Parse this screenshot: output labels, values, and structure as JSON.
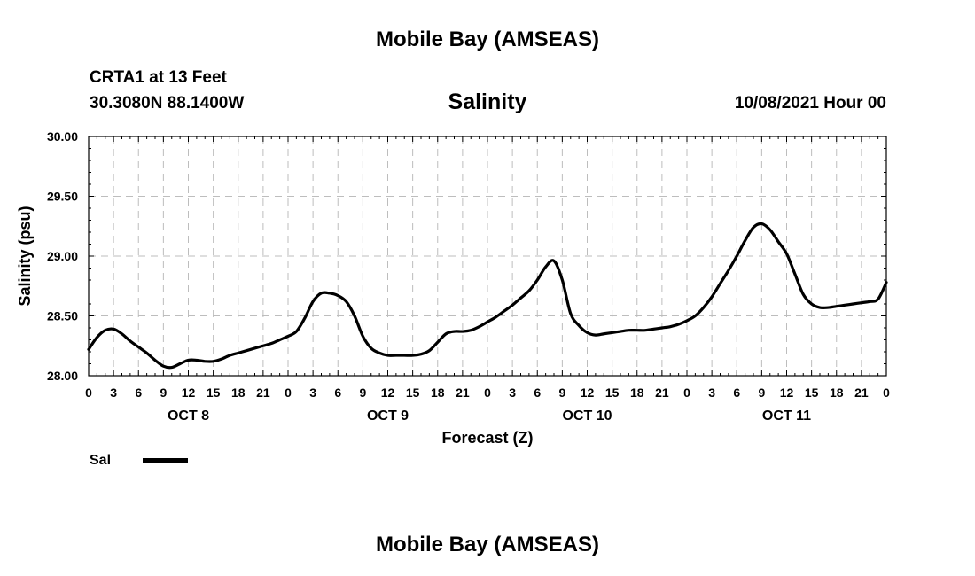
{
  "header": {
    "title": "Mobile Bay (AMSEAS)",
    "station": "CRTA1 at 13 Feet",
    "coords": "30.3080N  88.1400W",
    "run_time": "10/08/2021 Hour 00"
  },
  "footer": {
    "title": "Mobile Bay (AMSEAS)"
  },
  "chart_data": {
    "type": "line",
    "title": "Salinity",
    "xlabel": "Forecast (Z)",
    "ylabel": "Salinity (psu)",
    "ylim": [
      28.0,
      30.0
    ],
    "yticks": [
      "28.00",
      "28.50",
      "29.00",
      "29.50",
      "30.00"
    ],
    "xlim": [
      0,
      96
    ],
    "xtick_hours": [
      0,
      3,
      6,
      9,
      12,
      15,
      18,
      21,
      24,
      27,
      30,
      33,
      36,
      39,
      42,
      45,
      48,
      51,
      54,
      57,
      60,
      63,
      66,
      69,
      72,
      75,
      78,
      81,
      84,
      87,
      90,
      93,
      96
    ],
    "xtick_labels": [
      "0",
      "3",
      "6",
      "9",
      "12",
      "15",
      "18",
      "21",
      "0",
      "3",
      "6",
      "9",
      "12",
      "15",
      "18",
      "21",
      "0",
      "3",
      "6",
      "9",
      "12",
      "15",
      "18",
      "21",
      "0",
      "3",
      "6",
      "9",
      "12",
      "15",
      "18",
      "21",
      "0"
    ],
    "day_labels": [
      {
        "hour": 12,
        "label": "OCT 8"
      },
      {
        "hour": 36,
        "label": "OCT 9"
      },
      {
        "hour": 60,
        "label": "OCT 10"
      },
      {
        "hour": 84,
        "label": "OCT 11"
      }
    ],
    "grid": true,
    "series": [
      {
        "name": "Sal",
        "color": "#000000",
        "x": [
          0,
          1,
          2,
          3,
          4,
          5,
          6,
          7,
          8,
          9,
          10,
          11,
          12,
          13,
          14,
          15,
          16,
          17,
          18,
          19,
          20,
          21,
          22,
          23,
          24,
          25,
          26,
          27,
          28,
          29,
          30,
          31,
          32,
          33,
          34,
          35,
          36,
          37,
          38,
          39,
          40,
          41,
          42,
          43,
          44,
          45,
          46,
          47,
          48,
          49,
          50,
          51,
          52,
          53,
          54,
          55,
          56,
          57,
          58,
          59,
          60,
          61,
          62,
          63,
          64,
          65,
          66,
          67,
          68,
          69,
          70,
          71,
          72,
          73,
          74,
          75,
          76,
          77,
          78,
          79,
          80,
          81,
          82,
          83,
          84,
          85,
          86,
          87,
          88,
          89,
          90,
          91,
          92,
          93,
          94,
          95,
          96
        ],
        "values": [
          28.22,
          28.32,
          28.38,
          28.39,
          28.35,
          28.29,
          28.24,
          28.19,
          28.13,
          28.08,
          28.07,
          28.1,
          28.13,
          28.13,
          28.12,
          28.12,
          28.14,
          28.17,
          28.19,
          28.21,
          28.23,
          28.25,
          28.27,
          28.3,
          28.33,
          28.37,
          28.48,
          28.62,
          28.69,
          28.69,
          28.67,
          28.62,
          28.5,
          28.33,
          28.23,
          28.19,
          28.17,
          28.17,
          28.17,
          28.17,
          28.18,
          28.21,
          28.28,
          28.35,
          28.37,
          28.37,
          28.38,
          28.41,
          28.45,
          28.49,
          28.54,
          28.59,
          28.65,
          28.71,
          28.8,
          28.91,
          28.96,
          28.8,
          28.52,
          28.42,
          28.36,
          28.34,
          28.35,
          28.36,
          28.37,
          28.38,
          28.38,
          28.38,
          28.39,
          28.4,
          28.41,
          28.43,
          28.46,
          28.5,
          28.57,
          28.66,
          28.77,
          28.88,
          29.0,
          29.13,
          29.24,
          29.27,
          29.22,
          29.12,
          29.02,
          28.85,
          28.68,
          28.6,
          28.57,
          28.57,
          28.58,
          28.59,
          28.6,
          28.61,
          28.62,
          28.64,
          28.78
        ]
      }
    ],
    "legend": {
      "position": "bottom-left",
      "label": "Sal"
    }
  }
}
